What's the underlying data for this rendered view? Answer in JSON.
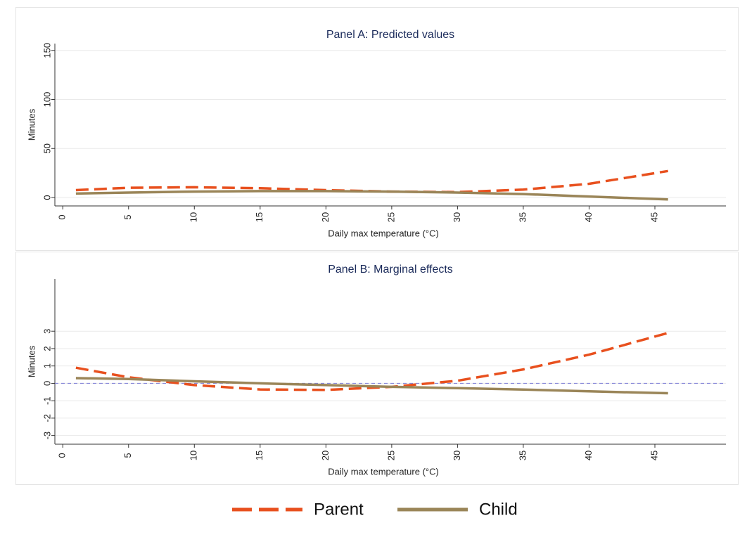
{
  "chart_data": [
    {
      "type": "line",
      "title": "Panel A: Predicted values",
      "x_label": "Daily max temperature (°C)",
      "y_label": "Minutes",
      "x": [
        1,
        5,
        10,
        15,
        20,
        25,
        30,
        35,
        40,
        46
      ],
      "series": [
        {
          "name": "Parent",
          "color": "#e8501e",
          "dash": true,
          "values": [
            7.5,
            10,
            10.5,
            9.5,
            7.5,
            6,
            5.5,
            8,
            14,
            27
          ]
        },
        {
          "name": "Child",
          "color": "#9a8558",
          "dash": false,
          "values": [
            4,
            5,
            6,
            6.5,
            6.5,
            6,
            5,
            3.5,
            1,
            -2
          ]
        }
      ],
      "xlim": [
        -0.6,
        50.4
      ],
      "ylim": [
        -8.6,
        157
      ],
      "xticks": [
        0,
        5,
        10,
        15,
        20,
        25,
        30,
        35,
        40,
        45
      ],
      "yticks": [
        0,
        50,
        100,
        150
      ],
      "grid": true
    },
    {
      "type": "line",
      "title": "Panel B: Marginal effects",
      "x_label": "Daily max temperature (°C)",
      "y_label": "Minutes",
      "x": [
        1,
        5,
        10,
        15,
        20,
        25,
        30,
        35,
        40,
        46
      ],
      "series": [
        {
          "name": "Parent",
          "color": "#e8501e",
          "dash": true,
          "values": [
            0.9,
            0.35,
            -0.1,
            -0.35,
            -0.38,
            -0.2,
            0.15,
            0.8,
            1.65,
            2.9
          ]
        },
        {
          "name": "Child",
          "color": "#9a8558",
          "dash": false,
          "values": [
            0.3,
            0.25,
            0.12,
            0,
            -0.1,
            -0.2,
            -0.28,
            -0.36,
            -0.46,
            -0.57
          ]
        }
      ],
      "xlim": [
        -0.6,
        50.4
      ],
      "ylim": [
        -3.5,
        6
      ],
      "xticks": [
        0,
        5,
        10,
        15,
        20,
        25,
        30,
        35,
        40,
        45
      ],
      "yticks": [
        -3,
        -2,
        -1,
        0,
        1,
        2,
        3
      ],
      "grid": true,
      "reference_line": {
        "y": 0,
        "color": "#7b7bd6"
      }
    }
  ]
}
